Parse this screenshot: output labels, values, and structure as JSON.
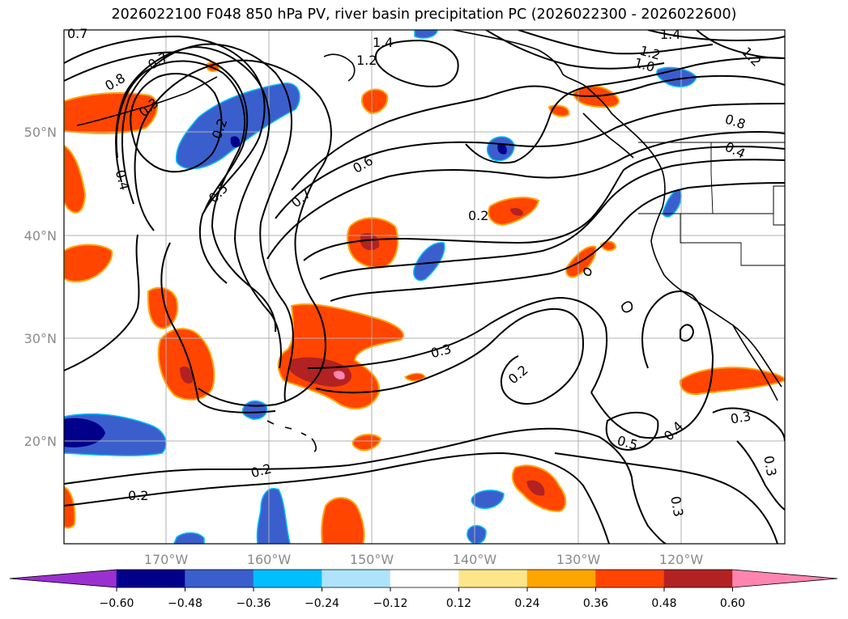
{
  "title": "2026022100 F048 850 hPa PV, river basin precipitation PC (2026022300 - 2026022600)",
  "axes": {
    "lat_labels": [
      "50°N",
      "40°N",
      "30°N",
      "20°N"
    ],
    "lon_labels": [
      "170°W",
      "160°W",
      "150°W",
      "140°W",
      "130°W",
      "120°W"
    ]
  },
  "colorbar": {
    "tick_labels": [
      "−0.60",
      "−0.48",
      "−0.36",
      "−0.24",
      "−0.12",
      "0.12",
      "0.24",
      "0.36",
      "0.48",
      "0.60"
    ],
    "colors": [
      "#9b30d0",
      "#00008b",
      "#3a5fcd",
      "#00bfff",
      "#aee3fa",
      "#ffffff",
      "#fde68a",
      "#ffa500",
      "#ff4500",
      "#b22222",
      "#ff85b0"
    ]
  },
  "contour_labels": [
    "0.7",
    "1.4",
    "1.2",
    "1.4",
    "1.2",
    "1.2",
    "1.0",
    "0.8",
    "0.7",
    "0.3",
    "0.2",
    "0.8",
    "0.4",
    "0.4",
    "0.6",
    "0.5",
    "0.7",
    "0.2",
    "0.3",
    "0.2",
    "0.5",
    "0.4",
    "0.3",
    "0.3",
    "0.2",
    "0.2",
    "0.3"
  ],
  "precip_colors": {
    "neg_dark": "#00008b",
    "neg_mid": "#3a5fcd",
    "neg_light": "#00bfff",
    "pos_light": "#fde68a",
    "pos_orange": "#ffa500",
    "pos_red": "#ff4500",
    "pos_dark": "#b22222",
    "pos_pink": "#ff85b0"
  }
}
